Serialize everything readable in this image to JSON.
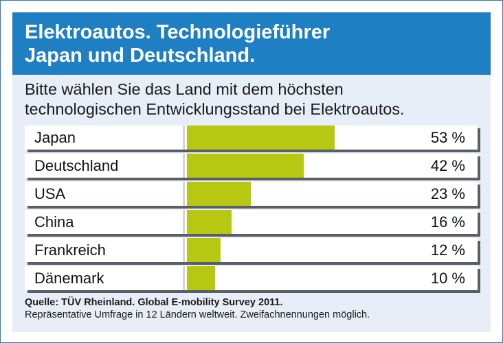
{
  "title": [
    "Elektroautos. Technologieführer",
    "Japan und Deutschland."
  ],
  "question": [
    "Bitte wählen Sie das Land mit dem höchsten",
    "technologischen Entwicklungsstand bei Elektroautos."
  ],
  "chart_data": {
    "type": "bar",
    "orientation": "horizontal",
    "categories": [
      "Japan",
      "Deutschland",
      "USA",
      "China",
      "Frankreich",
      "Dänemark"
    ],
    "values": [
      53,
      42,
      23,
      16,
      12,
      10
    ],
    "value_labels": [
      "53 %",
      "42 %",
      "23 %",
      "16 %",
      "12 %",
      "10 %"
    ],
    "unit": "%",
    "xlim": [
      0,
      100
    ]
  },
  "source": {
    "line1": "Quelle: TÜV Rheinland. Global E-mobility Survey 2011.",
    "line2": "Repräsentative Umfrage in 12 Ländern weltweit. Zweifachnennungen möglich."
  },
  "colors": {
    "header": "#1f7fc3",
    "panel": "#e8eef7",
    "bar": "#b6c811",
    "shadow": "#5a5f66"
  }
}
